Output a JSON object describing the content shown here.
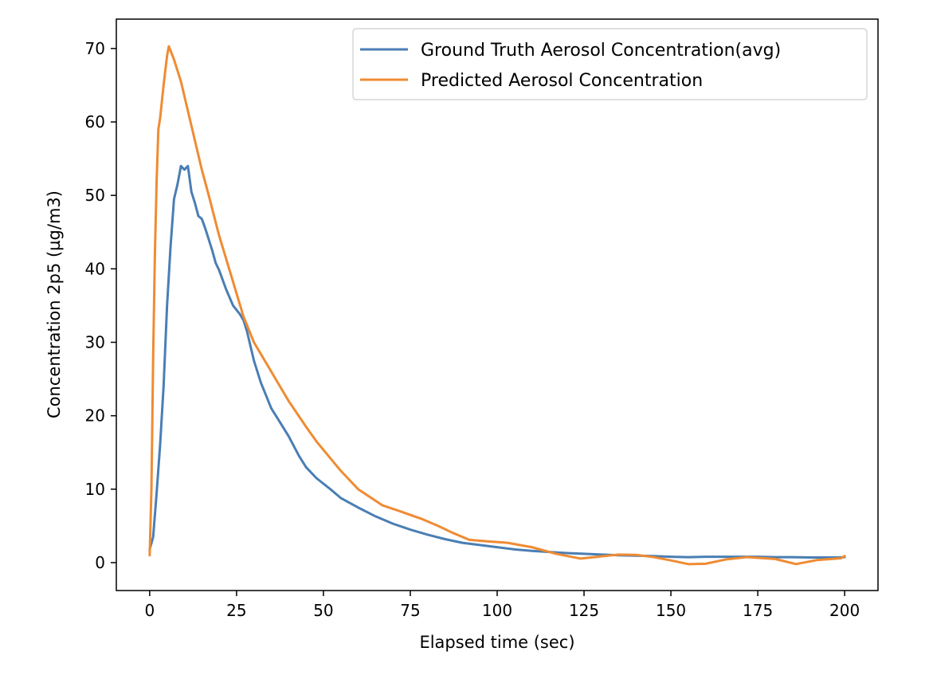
{
  "chart_data": {
    "type": "line",
    "title": "",
    "xlabel": "Elapsed time (sec)",
    "ylabel": "Concentration 2p5 (µg/m3)",
    "xlim": [
      -9.6,
      209.6
    ],
    "ylim": [
      -3.8,
      74
    ],
    "x_ticks": [
      0,
      25,
      50,
      75,
      100,
      125,
      150,
      175,
      200
    ],
    "x_tick_labels": [
      "0",
      "25",
      "50",
      "75",
      "100",
      "125",
      "150",
      "175",
      "200"
    ],
    "y_ticks": [
      0,
      10,
      20,
      30,
      40,
      50,
      60,
      70
    ],
    "y_tick_labels": [
      "0",
      "10",
      "20",
      "30",
      "40",
      "50",
      "60",
      "70"
    ],
    "grid": false,
    "legend_position": "top-right",
    "series": [
      {
        "name": "Ground Truth Aerosol Concentration(avg)",
        "color": "#4a7eb4",
        "points": [
          [
            0,
            1.8
          ],
          [
            1,
            3.5
          ],
          [
            2,
            9.5
          ],
          [
            3,
            16
          ],
          [
            4,
            24
          ],
          [
            5,
            35
          ],
          [
            6,
            43
          ],
          [
            7,
            49.5
          ],
          [
            8,
            51.5
          ],
          [
            9,
            54
          ],
          [
            10,
            53.5
          ],
          [
            11,
            54
          ],
          [
            12,
            50.5
          ],
          [
            13,
            49
          ],
          [
            14,
            47.2
          ],
          [
            15,
            46.8
          ],
          [
            16,
            45.5
          ],
          [
            17,
            44
          ],
          [
            18,
            42.5
          ],
          [
            19,
            40.8
          ],
          [
            20,
            39.8
          ],
          [
            22,
            37.2
          ],
          [
            24,
            35
          ],
          [
            26,
            33.8
          ],
          [
            27,
            33
          ],
          [
            28,
            31.5
          ],
          [
            29,
            29.5
          ],
          [
            30,
            27.5
          ],
          [
            32,
            24.5
          ],
          [
            35,
            21
          ],
          [
            37,
            19.5
          ],
          [
            40,
            17.2
          ],
          [
            43,
            14.5
          ],
          [
            45,
            13
          ],
          [
            48,
            11.5
          ],
          [
            52,
            10
          ],
          [
            55,
            8.8
          ],
          [
            60,
            7.5
          ],
          [
            65,
            6.3
          ],
          [
            70,
            5.3
          ],
          [
            75,
            4.5
          ],
          [
            80,
            3.8
          ],
          [
            85,
            3.2
          ],
          [
            90,
            2.7
          ],
          [
            95,
            2.4
          ],
          [
            100,
            2.1
          ],
          [
            105,
            1.8
          ],
          [
            110,
            1.6
          ],
          [
            115,
            1.45
          ],
          [
            120,
            1.3
          ],
          [
            125,
            1.2
          ],
          [
            130,
            1.1
          ],
          [
            135,
            1
          ],
          [
            140,
            0.95
          ],
          [
            145,
            0.9
          ],
          [
            150,
            0.8
          ],
          [
            155,
            0.75
          ],
          [
            160,
            0.8
          ],
          [
            165,
            0.8
          ],
          [
            170,
            0.8
          ],
          [
            175,
            0.8
          ],
          [
            180,
            0.75
          ],
          [
            185,
            0.75
          ],
          [
            190,
            0.7
          ],
          [
            195,
            0.7
          ],
          [
            199,
            0.7
          ],
          [
            200,
            0.75
          ]
        ]
      },
      {
        "name": "Predicted Aerosol Concentration",
        "color": "#ef8b33",
        "points": [
          [
            0,
            1
          ],
          [
            0.5,
            10
          ],
          [
            1,
            28
          ],
          [
            1.5,
            42
          ],
          [
            2,
            52
          ],
          [
            2.5,
            59
          ],
          [
            3,
            60.5
          ],
          [
            4,
            65
          ],
          [
            5,
            69
          ],
          [
            5.5,
            70.3
          ],
          [
            7,
            68.5
          ],
          [
            9,
            65.5
          ],
          [
            11,
            61.5
          ],
          [
            13,
            57.5
          ],
          [
            15,
            53.5
          ],
          [
            17,
            50
          ],
          [
            20,
            44.5
          ],
          [
            23,
            39.8
          ],
          [
            27,
            33.5
          ],
          [
            30,
            30
          ],
          [
            35,
            26
          ],
          [
            40,
            22
          ],
          [
            45,
            18.5
          ],
          [
            48,
            16.5
          ],
          [
            55,
            12.5
          ],
          [
            60,
            10
          ],
          [
            67,
            7.8
          ],
          [
            72,
            7
          ],
          [
            78,
            6
          ],
          [
            83,
            5
          ],
          [
            87,
            4.1
          ],
          [
            92,
            3.1
          ],
          [
            97,
            2.9
          ],
          [
            103,
            2.7
          ],
          [
            110,
            2.1
          ],
          [
            117,
            1.2
          ],
          [
            124,
            0.55
          ],
          [
            130,
            0.85
          ],
          [
            135,
            1.1
          ],
          [
            140,
            1.05
          ],
          [
            145,
            0.75
          ],
          [
            150,
            0.3
          ],
          [
            155,
            -0.2
          ],
          [
            160,
            -0.15
          ],
          [
            166,
            0.45
          ],
          [
            172,
            0.75
          ],
          [
            180,
            0.5
          ],
          [
            186,
            -0.2
          ],
          [
            192,
            0.35
          ],
          [
            199,
            0.6
          ],
          [
            200,
            0.9
          ]
        ]
      }
    ]
  }
}
